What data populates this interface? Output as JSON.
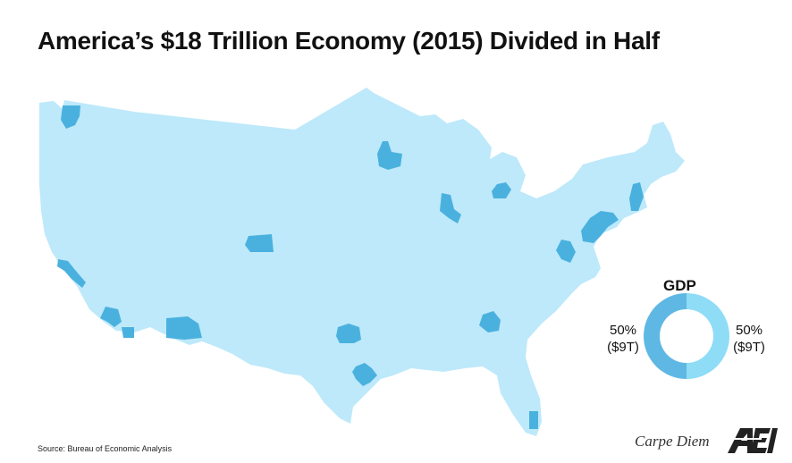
{
  "title": "America’s $18 Trillion Economy (2015) Divided in Half",
  "colors": {
    "rest_of_us": "#bde9fa",
    "metro": "#4ab1df",
    "donut_left": "#5fb8e3",
    "donut_right": "#8fdcf7"
  },
  "legend": {
    "label": "GDP",
    "left": {
      "percent": "50%",
      "amount": "($9T)",
      "share": 0.5
    },
    "right": {
      "percent": "50%",
      "amount": "($9T)",
      "share": 0.5
    }
  },
  "source": "Source: Bureau of Economic Analysis",
  "brand": {
    "text": "Carpe Diem",
    "logo": "AEI"
  }
}
